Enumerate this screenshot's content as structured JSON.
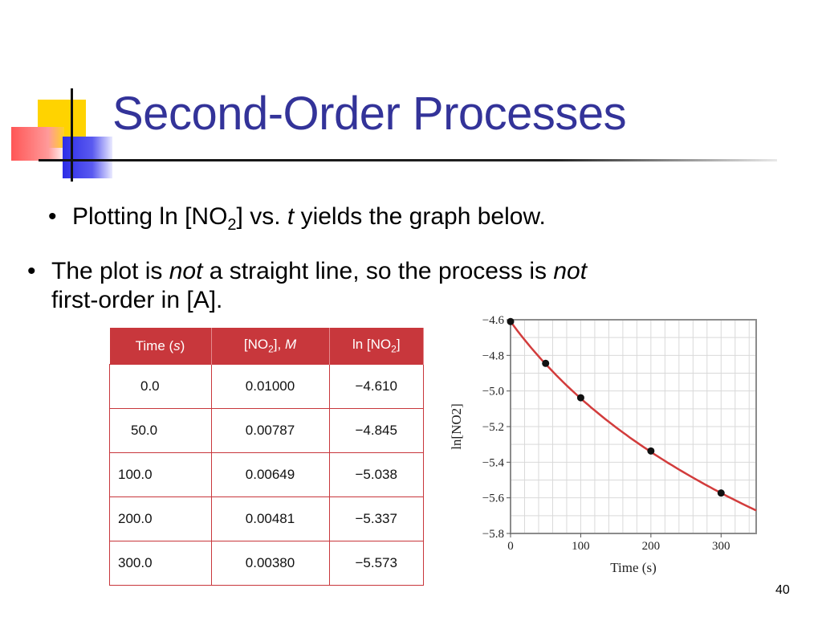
{
  "slide": {
    "title": "Second-Order Processes",
    "page_number": "40"
  },
  "bullets": {
    "b1": {
      "pre": "Plotting ln [NO",
      "sub": "2",
      "post": "] vs",
      "dot": ".",
      "var": "t",
      "tail": " yields the graph below."
    },
    "b2": {
      "pre": "The plot is ",
      "em1": "not",
      "mid": " a straight line, so the process is ",
      "em2": "not",
      "line2": "first-order in [A]."
    }
  },
  "table": {
    "headers": {
      "time": {
        "pre": "Time (",
        "var": "s",
        "post": ")"
      },
      "conc": {
        "pre": "[NO",
        "sub": "2",
        "post": "], ",
        "unit": "M"
      },
      "ln": {
        "pre": "ln [NO",
        "sub": "2",
        "post": "]"
      }
    },
    "rows": [
      {
        "time": "0.0",
        "conc": "0.01000",
        "ln": "−4.610"
      },
      {
        "time": "50.0",
        "conc": "0.00787",
        "ln": "−4.845"
      },
      {
        "time": "100.0",
        "conc": "0.00649",
        "ln": "−5.038"
      },
      {
        "time": "200.0",
        "conc": "0.00481",
        "ln": "−5.337"
      },
      {
        "time": "300.0",
        "conc": "0.00380",
        "ln": "−5.573"
      }
    ]
  },
  "chart_data": {
    "type": "scatter",
    "xlabel": "Time (s)",
    "ylabel": "ln[NO2]",
    "xlim": [
      0,
      350
    ],
    "ylim": [
      -5.8,
      -4.6
    ],
    "xticks": [
      0,
      100,
      200,
      300
    ],
    "yticks": [
      -4.6,
      -4.8,
      -5.0,
      -5.2,
      -5.4,
      -5.6,
      -5.8
    ],
    "ytick_labels": [
      "−4.6",
      "−4.8",
      "−5.0",
      "−5.2",
      "−5.4",
      "−5.6",
      "−5.8"
    ],
    "grid": true,
    "series": [
      {
        "x": [
          0,
          50,
          100,
          200,
          300
        ],
        "y": [
          -4.61,
          -4.845,
          -5.038,
          -5.337,
          -5.573
        ]
      }
    ],
    "curve_color": "#d23c3c",
    "point_color": "#111111"
  }
}
